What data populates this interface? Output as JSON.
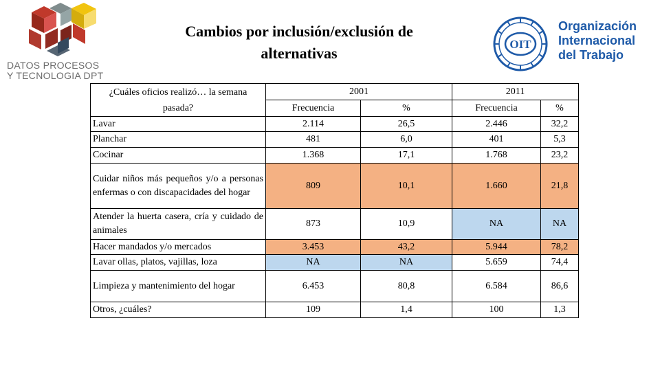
{
  "logo_left": {
    "line1": "DATOS PROCESOS",
    "line2": "Y TECNOLOGIA DPT"
  },
  "title": {
    "line1": "Cambios por inclusión/exclusión de",
    "line2": "alternativas"
  },
  "logo_right": {
    "emblem_text": "OIT",
    "line1": "Organización",
    "line2": "Internacional",
    "line3": "del Trabajo"
  },
  "colors": {
    "highlight_orange": "#f4b183",
    "highlight_blue": "#bdd7ee",
    "oit_blue": "#1e5aa8"
  },
  "table": {
    "question": "¿Cuáles oficios realizó… la semana pasada?",
    "years": [
      "2001",
      "2011"
    ],
    "subheaders": [
      "Frecuencia",
      "%",
      "Frecuencia",
      "%"
    ],
    "rows": [
      {
        "label": "Lavar",
        "f2001": "2.114",
        "p2001": "26,5",
        "f2011": "2.446",
        "p2011": "32,2"
      },
      {
        "label": "Planchar",
        "f2001": "481",
        "p2001": "6,0",
        "f2011": "401",
        "p2011": "5,3"
      },
      {
        "label": "Cocinar",
        "f2001": "1.368",
        "p2001": "17,1",
        "f2011": "1.768",
        "p2011": "23,2"
      },
      {
        "label": "Cuidar niños más pequeños y/o a personas enfermas o con discapacidades del hogar",
        "f2001": "809",
        "p2001": "10,1",
        "f2011": "1.660",
        "p2011": "21,8"
      },
      {
        "label": "Atender la huerta casera, cría y cuidado de animales",
        "f2001": "873",
        "p2001": "10,9",
        "f2011": "NA",
        "p2011": "NA"
      },
      {
        "label": "Hacer mandados y/o mercados",
        "f2001": "3.453",
        "p2001": "43,2",
        "f2011": "5.944",
        "p2011": "78,2"
      },
      {
        "label": "Lavar ollas, platos, vajillas, loza",
        "f2001": "NA",
        "p2001": "NA",
        "f2011": "5.659",
        "p2011": "74,4"
      },
      {
        "label": "Limpieza y mantenimiento del hogar",
        "f2001": "6.453",
        "p2001": "80,8",
        "f2011": "6.584",
        "p2011": "86,6"
      },
      {
        "label": "Otros, ¿cuáles?",
        "f2001": "109",
        "p2001": "1,4",
        "f2011": "100",
        "p2011": "1,3"
      }
    ]
  }
}
